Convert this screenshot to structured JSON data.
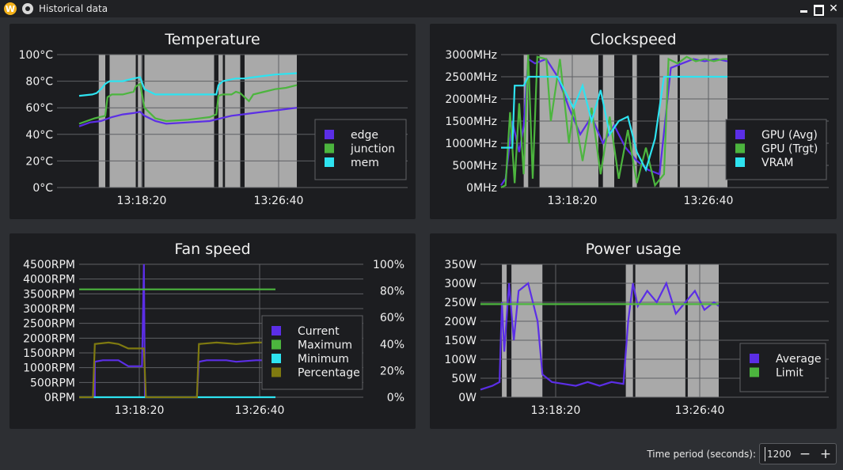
{
  "window": {
    "title": "Historical data",
    "app_logo_letter": "W",
    "controls": {
      "close": "✕"
    }
  },
  "colors": {
    "background": "#2d2f33",
    "panel": "#1c1d20",
    "grid": "#5f6165",
    "shade": "#a9a9a9",
    "edge": "#5b2ee6",
    "junction": "#4cb53e",
    "mem": "#2ee3f0",
    "percentage": "#7f7a10"
  },
  "footer": {
    "time_period_label": "Time period (seconds):",
    "time_period_value": "1200",
    "minus": "−",
    "plus": "+"
  },
  "chart_data": [
    {
      "type": "line",
      "title": "Temperature",
      "y_ticks": [
        "100°C",
        "80°C",
        "60°C",
        "40°C",
        "20°C",
        "0°C"
      ],
      "ylim": [
        0,
        100
      ],
      "x_ticks": [
        "13:18:20",
        "13:26:40"
      ],
      "grid": true,
      "legend_position": "bottom-right",
      "series": [
        {
          "name": "edge",
          "color": "#5b2ee6",
          "points": [
            [
              0,
              46
            ],
            [
              0.05,
              49
            ],
            [
              0.1,
              50
            ],
            [
              0.15,
              53
            ],
            [
              0.2,
              55
            ],
            [
              0.25,
              56
            ],
            [
              0.28,
              57
            ],
            [
              0.3,
              54
            ],
            [
              0.35,
              50
            ],
            [
              0.4,
              48
            ],
            [
              0.5,
              49
            ],
            [
              0.6,
              50
            ],
            [
              0.65,
              52
            ],
            [
              0.7,
              54
            ],
            [
              0.75,
              55
            ],
            [
              0.8,
              56
            ],
            [
              0.85,
              57
            ],
            [
              0.9,
              58
            ],
            [
              0.95,
              59
            ],
            [
              1.0,
              60
            ]
          ]
        },
        {
          "name": "junction",
          "color": "#4cb53e",
          "points": [
            [
              0,
              48
            ],
            [
              0.07,
              52
            ],
            [
              0.12,
              54
            ],
            [
              0.13,
              68
            ],
            [
              0.15,
              70
            ],
            [
              0.17,
              70
            ],
            [
              0.2,
              70
            ],
            [
              0.25,
              72
            ],
            [
              0.26,
              76
            ],
            [
              0.28,
              78
            ],
            [
              0.3,
              60
            ],
            [
              0.35,
              52
            ],
            [
              0.4,
              50
            ],
            [
              0.5,
              51
            ],
            [
              0.6,
              53
            ],
            [
              0.63,
              55
            ],
            [
              0.64,
              69
            ],
            [
              0.66,
              70
            ],
            [
              0.68,
              70
            ],
            [
              0.7,
              70
            ],
            [
              0.72,
              72
            ],
            [
              0.74,
              71
            ],
            [
              0.76,
              68
            ],
            [
              0.78,
              65
            ],
            [
              0.8,
              70
            ],
            [
              0.85,
              72
            ],
            [
              0.9,
              74
            ],
            [
              0.95,
              75
            ],
            [
              1.0,
              77
            ]
          ]
        },
        {
          "name": "mem",
          "color": "#2ee3f0",
          "points": [
            [
              0,
              69
            ],
            [
              0.06,
              70
            ],
            [
              0.08,
              71
            ],
            [
              0.1,
              74
            ],
            [
              0.12,
              78
            ],
            [
              0.14,
              80
            ],
            [
              0.17,
              80
            ],
            [
              0.2,
              80
            ],
            [
              0.25,
              82
            ],
            [
              0.28,
              83
            ],
            [
              0.3,
              74
            ],
            [
              0.35,
              70
            ],
            [
              0.45,
              70
            ],
            [
              0.55,
              70
            ],
            [
              0.63,
              70
            ],
            [
              0.64,
              77
            ],
            [
              0.66,
              80
            ],
            [
              0.72,
              82
            ],
            [
              0.76,
              82
            ],
            [
              0.8,
              83
            ],
            [
              0.85,
              84
            ],
            [
              0.9,
              85
            ],
            [
              1.0,
              86
            ]
          ]
        }
      ],
      "shade_bands": [
        [
          0.09,
          0.12
        ],
        [
          0.14,
          0.26
        ],
        [
          0.27,
          0.29
        ],
        [
          0.3,
          0.62
        ],
        [
          0.64,
          0.66
        ],
        [
          0.67,
          0.74
        ],
        [
          0.76,
          1.0
        ]
      ]
    },
    {
      "type": "line",
      "title": "Clockspeed",
      "y_ticks": [
        "3000MHz",
        "2500MHz",
        "2000MHz",
        "1500MHz",
        "1000MHz",
        "500MHz",
        "0MHz"
      ],
      "ylim": [
        0,
        3000
      ],
      "x_ticks": [
        "13:18:20",
        "13:26:40"
      ],
      "grid": true,
      "legend_position": "bottom-right",
      "series": [
        {
          "name": "GPU (Avg)",
          "color": "#5b2ee6",
          "points": [
            [
              0,
              50
            ],
            [
              0.02,
              200
            ],
            [
              0.05,
              1500
            ],
            [
              0.08,
              800
            ],
            [
              0.1,
              1400
            ],
            [
              0.12,
              2900
            ],
            [
              0.15,
              2800
            ],
            [
              0.2,
              2900
            ],
            [
              0.25,
              2500
            ],
            [
              0.3,
              1800
            ],
            [
              0.35,
              1200
            ],
            [
              0.4,
              1600
            ],
            [
              0.45,
              1000
            ],
            [
              0.5,
              1400
            ],
            [
              0.55,
              900
            ],
            [
              0.6,
              600
            ],
            [
              0.65,
              400
            ],
            [
              0.7,
              300
            ],
            [
              0.75,
              2700
            ],
            [
              0.8,
              2800
            ],
            [
              0.85,
              2900
            ],
            [
              0.9,
              2850
            ],
            [
              0.95,
              2900
            ],
            [
              1.0,
              2850
            ]
          ]
        },
        {
          "name": "GPU (Trgt)",
          "color": "#4cb53e",
          "points": [
            [
              0,
              0
            ],
            [
              0.02,
              50
            ],
            [
              0.04,
              1700
            ],
            [
              0.06,
              100
            ],
            [
              0.08,
              1900
            ],
            [
              0.1,
              300
            ],
            [
              0.12,
              3000
            ],
            [
              0.14,
              200
            ],
            [
              0.16,
              2950
            ],
            [
              0.2,
              2900
            ],
            [
              0.22,
              1500
            ],
            [
              0.26,
              2900
            ],
            [
              0.3,
              1000
            ],
            [
              0.32,
              1800
            ],
            [
              0.36,
              600
            ],
            [
              0.4,
              1800
            ],
            [
              0.44,
              300
            ],
            [
              0.48,
              1600
            ],
            [
              0.52,
              200
            ],
            [
              0.56,
              1300
            ],
            [
              0.6,
              100
            ],
            [
              0.64,
              900
            ],
            [
              0.68,
              50
            ],
            [
              0.72,
              300
            ],
            [
              0.74,
              2900
            ],
            [
              0.78,
              2800
            ],
            [
              0.82,
              2950
            ],
            [
              0.86,
              2850
            ],
            [
              0.9,
              2900
            ],
            [
              0.94,
              2850
            ],
            [
              0.98,
              2900
            ],
            [
              1.0,
              2900
            ]
          ]
        },
        {
          "name": "VRAM",
          "color": "#2ee3f0",
          "points": [
            [
              0,
              900
            ],
            [
              0.05,
              900
            ],
            [
              0.06,
              2300
            ],
            [
              0.1,
              2300
            ],
            [
              0.12,
              2500
            ],
            [
              0.2,
              2500
            ],
            [
              0.25,
              2500
            ],
            [
              0.28,
              2200
            ],
            [
              0.32,
              1800
            ],
            [
              0.36,
              2300
            ],
            [
              0.4,
              1500
            ],
            [
              0.44,
              2200
            ],
            [
              0.48,
              1200
            ],
            [
              0.52,
              1500
            ],
            [
              0.56,
              1600
            ],
            [
              0.6,
              800
            ],
            [
              0.64,
              400
            ],
            [
              0.68,
              1100
            ],
            [
              0.72,
              2500
            ],
            [
              0.8,
              2500
            ],
            [
              0.9,
              2500
            ],
            [
              1.0,
              2500
            ]
          ]
        }
      ],
      "shade_bands": [
        [
          0.1,
          0.12
        ],
        [
          0.17,
          0.43
        ],
        [
          0.45,
          0.5
        ],
        [
          0.58,
          0.6
        ],
        [
          0.7,
          0.78
        ],
        [
          0.79,
          1.0
        ]
      ]
    },
    {
      "type": "line",
      "title": "Fan speed",
      "y_ticks": [
        "4500RPM",
        "4000RPM",
        "3500RPM",
        "3000RPM",
        "2500RPM",
        "2000RPM",
        "1500RPM",
        "1000RPM",
        "500RPM",
        "0RPM"
      ],
      "y2_ticks": [
        "100%",
        "80%",
        "60%",
        "40%",
        "20%",
        "0%"
      ],
      "ylim": [
        0,
        4500
      ],
      "y2lim": [
        0,
        100
      ],
      "x_ticks": [
        "13:18:20",
        "13:26:40"
      ],
      "grid": true,
      "legend_position": "bottom-right",
      "series": [
        {
          "name": "Current",
          "color": "#5b2ee6",
          "points": [
            [
              0,
              0
            ],
            [
              0.08,
              0
            ],
            [
              0.08,
              1200
            ],
            [
              0.12,
              1250
            ],
            [
              0.2,
              1250
            ],
            [
              0.25,
              1050
            ],
            [
              0.32,
              1050
            ],
            [
              0.33,
              4500
            ],
            [
              0.335,
              0
            ],
            [
              0.6,
              0
            ],
            [
              0.61,
              1200
            ],
            [
              0.65,
              1250
            ],
            [
              0.75,
              1250
            ],
            [
              0.8,
              1200
            ],
            [
              0.9,
              1250
            ],
            [
              1.0,
              1250
            ]
          ]
        },
        {
          "name": "Maximum",
          "color": "#4cb53e",
          "points": [
            [
              0,
              3650
            ],
            [
              1.0,
              3650
            ]
          ]
        },
        {
          "name": "Minimum",
          "color": "#2ee3f0",
          "points": [
            [
              0,
              0
            ],
            [
              1.0,
              0
            ]
          ]
        },
        {
          "name": "Percentage",
          "color": "#7f7a10",
          "points": [
            [
              0,
              0
            ],
            [
              0.07,
              0
            ],
            [
              0.08,
              1800
            ],
            [
              0.15,
              1850
            ],
            [
              0.2,
              1800
            ],
            [
              0.25,
              1650
            ],
            [
              0.33,
              1650
            ],
            [
              0.34,
              0
            ],
            [
              0.6,
              0
            ],
            [
              0.61,
              1800
            ],
            [
              0.7,
              1850
            ],
            [
              0.8,
              1800
            ],
            [
              0.9,
              1850
            ],
            [
              1.0,
              1850
            ]
          ]
        }
      ]
    },
    {
      "type": "line",
      "title": "Power usage",
      "y_ticks": [
        "350W",
        "300W",
        "250W",
        "200W",
        "150W",
        "100W",
        "50W",
        "0W"
      ],
      "ylim": [
        0,
        350
      ],
      "x_ticks": [
        "13:18:20",
        "13:26:40"
      ],
      "grid": true,
      "legend_position": "bottom-right",
      "series": [
        {
          "name": "Average",
          "color": "#5b2ee6",
          "points": [
            [
              0,
              20
            ],
            [
              0.05,
              30
            ],
            [
              0.08,
              40
            ],
            [
              0.09,
              250
            ],
            [
              0.1,
              120
            ],
            [
              0.12,
              300
            ],
            [
              0.14,
              150
            ],
            [
              0.16,
              280
            ],
            [
              0.2,
              300
            ],
            [
              0.24,
              200
            ],
            [
              0.26,
              60
            ],
            [
              0.3,
              40
            ],
            [
              0.35,
              35
            ],
            [
              0.4,
              30
            ],
            [
              0.45,
              40
            ],
            [
              0.5,
              30
            ],
            [
              0.55,
              40
            ],
            [
              0.6,
              35
            ],
            [
              0.62,
              200
            ],
            [
              0.64,
              300
            ],
            [
              0.66,
              240
            ],
            [
              0.7,
              280
            ],
            [
              0.74,
              250
            ],
            [
              0.78,
              300
            ],
            [
              0.82,
              220
            ],
            [
              0.86,
              250
            ],
            [
              0.9,
              280
            ],
            [
              0.94,
              230
            ],
            [
              0.98,
              250
            ],
            [
              1.0,
              240
            ]
          ]
        },
        {
          "name": "Limit",
          "color": "#4cb53e",
          "points": [
            [
              0,
              245
            ],
            [
              1.0,
              245
            ]
          ]
        }
      ],
      "shade_bands": [
        [
          0.09,
          0.11
        ],
        [
          0.13,
          0.26
        ],
        [
          0.61,
          0.64
        ],
        [
          0.65,
          0.86
        ],
        [
          0.87,
          1.0
        ]
      ]
    }
  ]
}
